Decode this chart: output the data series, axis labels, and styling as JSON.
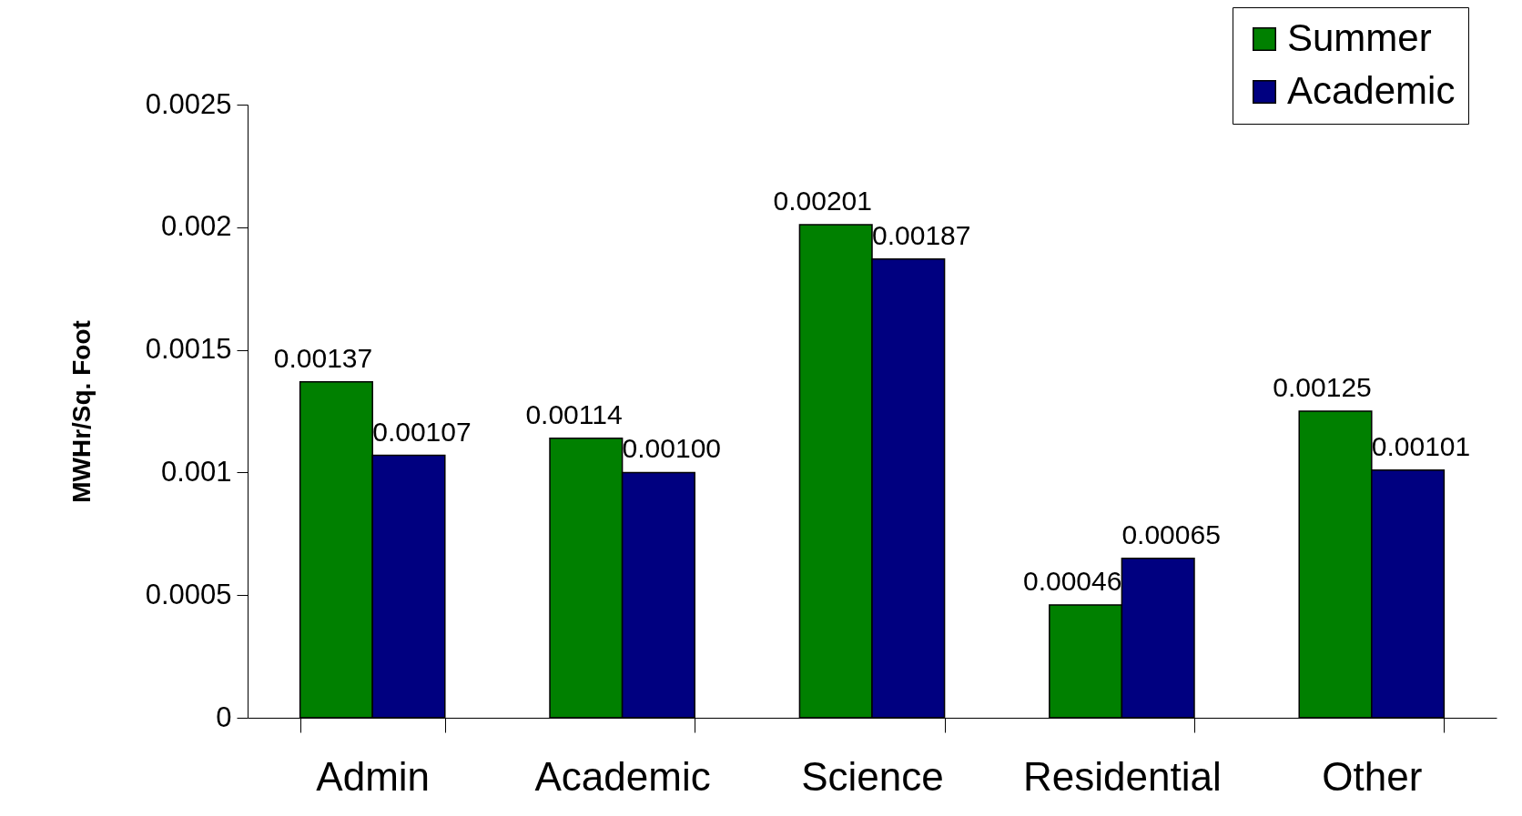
{
  "chart_data": {
    "type": "bar",
    "ylabel": "MWHr/Sq. Foot",
    "categories": [
      "Admin",
      "Academic",
      "Science",
      "Residential",
      "Other"
    ],
    "series": [
      {
        "name": "Summer",
        "color": "#008000",
        "values": [
          0.00137,
          0.00114,
          0.00201,
          0.00046,
          0.00125
        ],
        "value_labels": [
          "0.00137",
          "0.00114",
          "0.00201",
          "0.00046",
          "0.00125"
        ]
      },
      {
        "name": "Academic",
        "color": "#000080",
        "values": [
          0.00107,
          0.001,
          0.00187,
          0.00065,
          0.00101
        ],
        "value_labels": [
          "0.00107",
          "0.00100",
          "0.00187",
          "0.00065",
          "0.00101"
        ]
      }
    ],
    "ylim": [
      0,
      0.0025
    ],
    "yticks": [
      0,
      0.0005,
      0.001,
      0.0015,
      0.002,
      0.0025
    ],
    "grid": false,
    "legend": "top right"
  }
}
